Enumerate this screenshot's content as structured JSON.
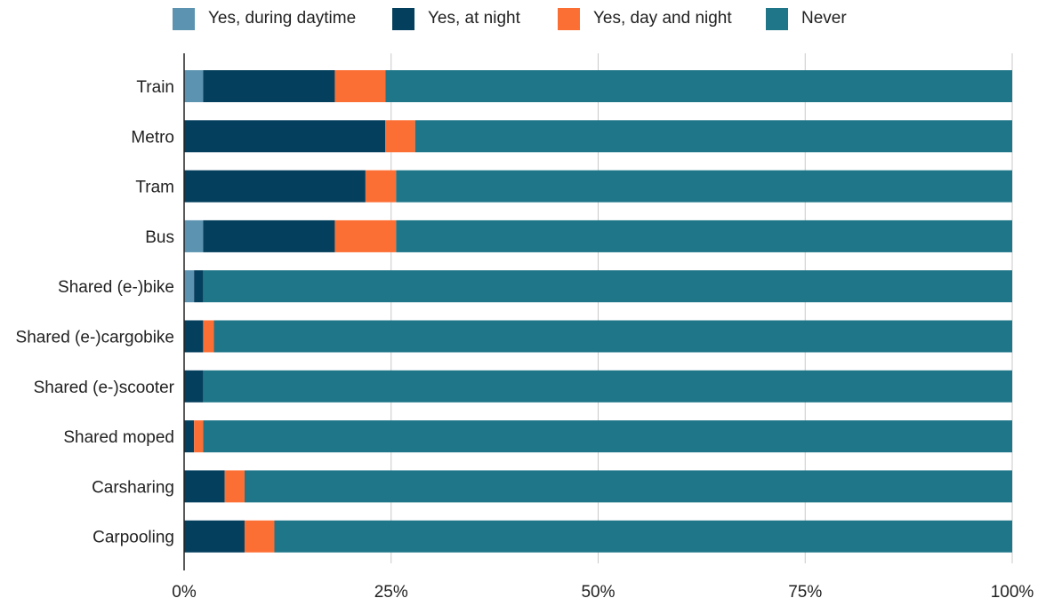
{
  "chart_data": {
    "type": "bar",
    "orientation": "horizontal",
    "stacked": true,
    "normalized": true,
    "categories": [
      "Train",
      "Metro",
      "Tram",
      "Bus",
      "Shared (e-)bike",
      "Shared (e-)cargobike",
      "Shared (e-)scooter",
      "Shared moped",
      "Carsharing",
      "Carpooling"
    ],
    "series": [
      {
        "name": "Yes, during daytime",
        "color": "#5b93b0",
        "values": [
          2.3,
          0,
          0,
          2.3,
          1.2,
          0,
          0,
          0,
          0,
          0
        ]
      },
      {
        "name": "Yes, at night",
        "color": "#043f5d",
        "values": [
          15.9,
          24.3,
          21.9,
          15.9,
          1.1,
          2.3,
          2.3,
          1.2,
          4.9,
          7.3
        ]
      },
      {
        "name": "Yes, day and night",
        "color": "#fc6f34",
        "values": [
          6.1,
          3.6,
          3.7,
          7.4,
          0,
          1.3,
          0,
          1.1,
          2.4,
          3.6
        ]
      },
      {
        "name": "Never",
        "color": "#1f7688",
        "values": [
          75.7,
          72.1,
          74.4,
          74.4,
          97.7,
          96.4,
          97.7,
          97.7,
          92.7,
          89.1
        ]
      }
    ],
    "xlim": [
      0,
      100
    ],
    "xticks": [
      "0%",
      "25%",
      "50%",
      "75%",
      "100%"
    ],
    "grid": true,
    "legend_position": "top"
  }
}
